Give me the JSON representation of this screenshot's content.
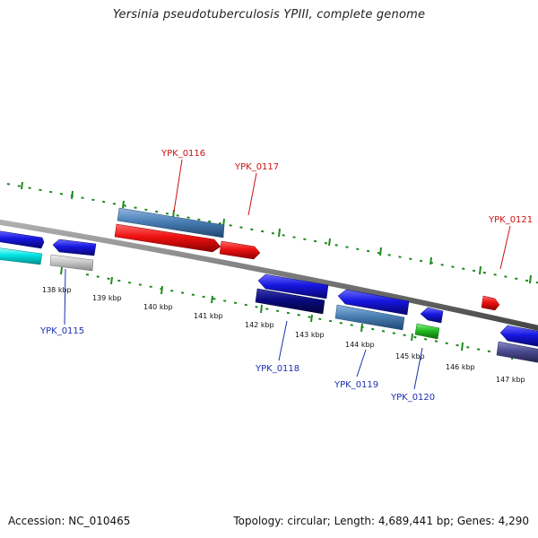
{
  "title": "Yersinia pseudotuberculosis YPIII, complete genome",
  "footer": {
    "accession": "Accession: NC_010465",
    "stats": "Topology: circular; Length: 4,689,441 bp; Genes: 4,290"
  },
  "scale_labels": [
    "138 kbp",
    "139 kbp",
    "140 kbp",
    "141 kbp",
    "142 kbp",
    "143 kbp",
    "144 kbp",
    "145 kbp",
    "146 kbp",
    "147 kbp"
  ],
  "gene_labels": {
    "YPK_0115": "YPK_0115",
    "YPK_0116": "YPK_0116",
    "YPK_0117": "YPK_0117",
    "YPK_0118": "YPK_0118",
    "YPK_0119": "YPK_0119",
    "YPK_0120": "YPK_0120",
    "YPK_0121": "YPK_0121"
  },
  "colors": {
    "backbone": "#7a7a7a",
    "tick": "#1e8a1e",
    "red": "#ee1111",
    "blue": "#1616e0",
    "steelblue": "#4a7fb5",
    "navy": "#0a0a80",
    "cyan": "#00e5e5",
    "gray": "#c8c8c8",
    "green": "#22bb22",
    "slate": "#4a4a90"
  }
}
